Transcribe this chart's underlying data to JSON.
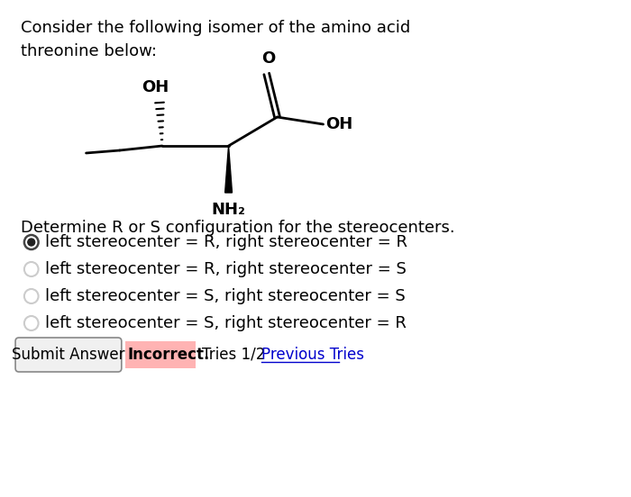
{
  "title_text": "Consider the following isomer of the amino acid\nthreonine below:",
  "question_text": "Determine R or S configuration for the stereocenters.",
  "options": [
    "left stereocenter = R, right stereocenter = R",
    "left stereocenter = R, right stereocenter = S",
    "left stereocenter = S, right stereocenter = S",
    "left stereocenter = S, right stereocenter = R"
  ],
  "selected_option": 0,
  "background_color": "#ffffff",
  "text_color": "#000000",
  "radio_selected_outer": "#555555",
  "radio_selected_inner": "#333333",
  "radio_unselected": "#cccccc",
  "submit_button_text": "Submit Answer",
  "submit_button_bg": "#f0f0f0",
  "submit_button_border": "#888888",
  "incorrect_text": "Incorrect.",
  "incorrect_bg": "#ffb3b3",
  "tries_text": "Tries 1/2",
  "previous_tries_text": "Previous Tries",
  "previous_tries_color": "#0000cc",
  "font_size_title": 13,
  "font_size_question": 13,
  "font_size_options": 13,
  "font_size_bottom": 12
}
